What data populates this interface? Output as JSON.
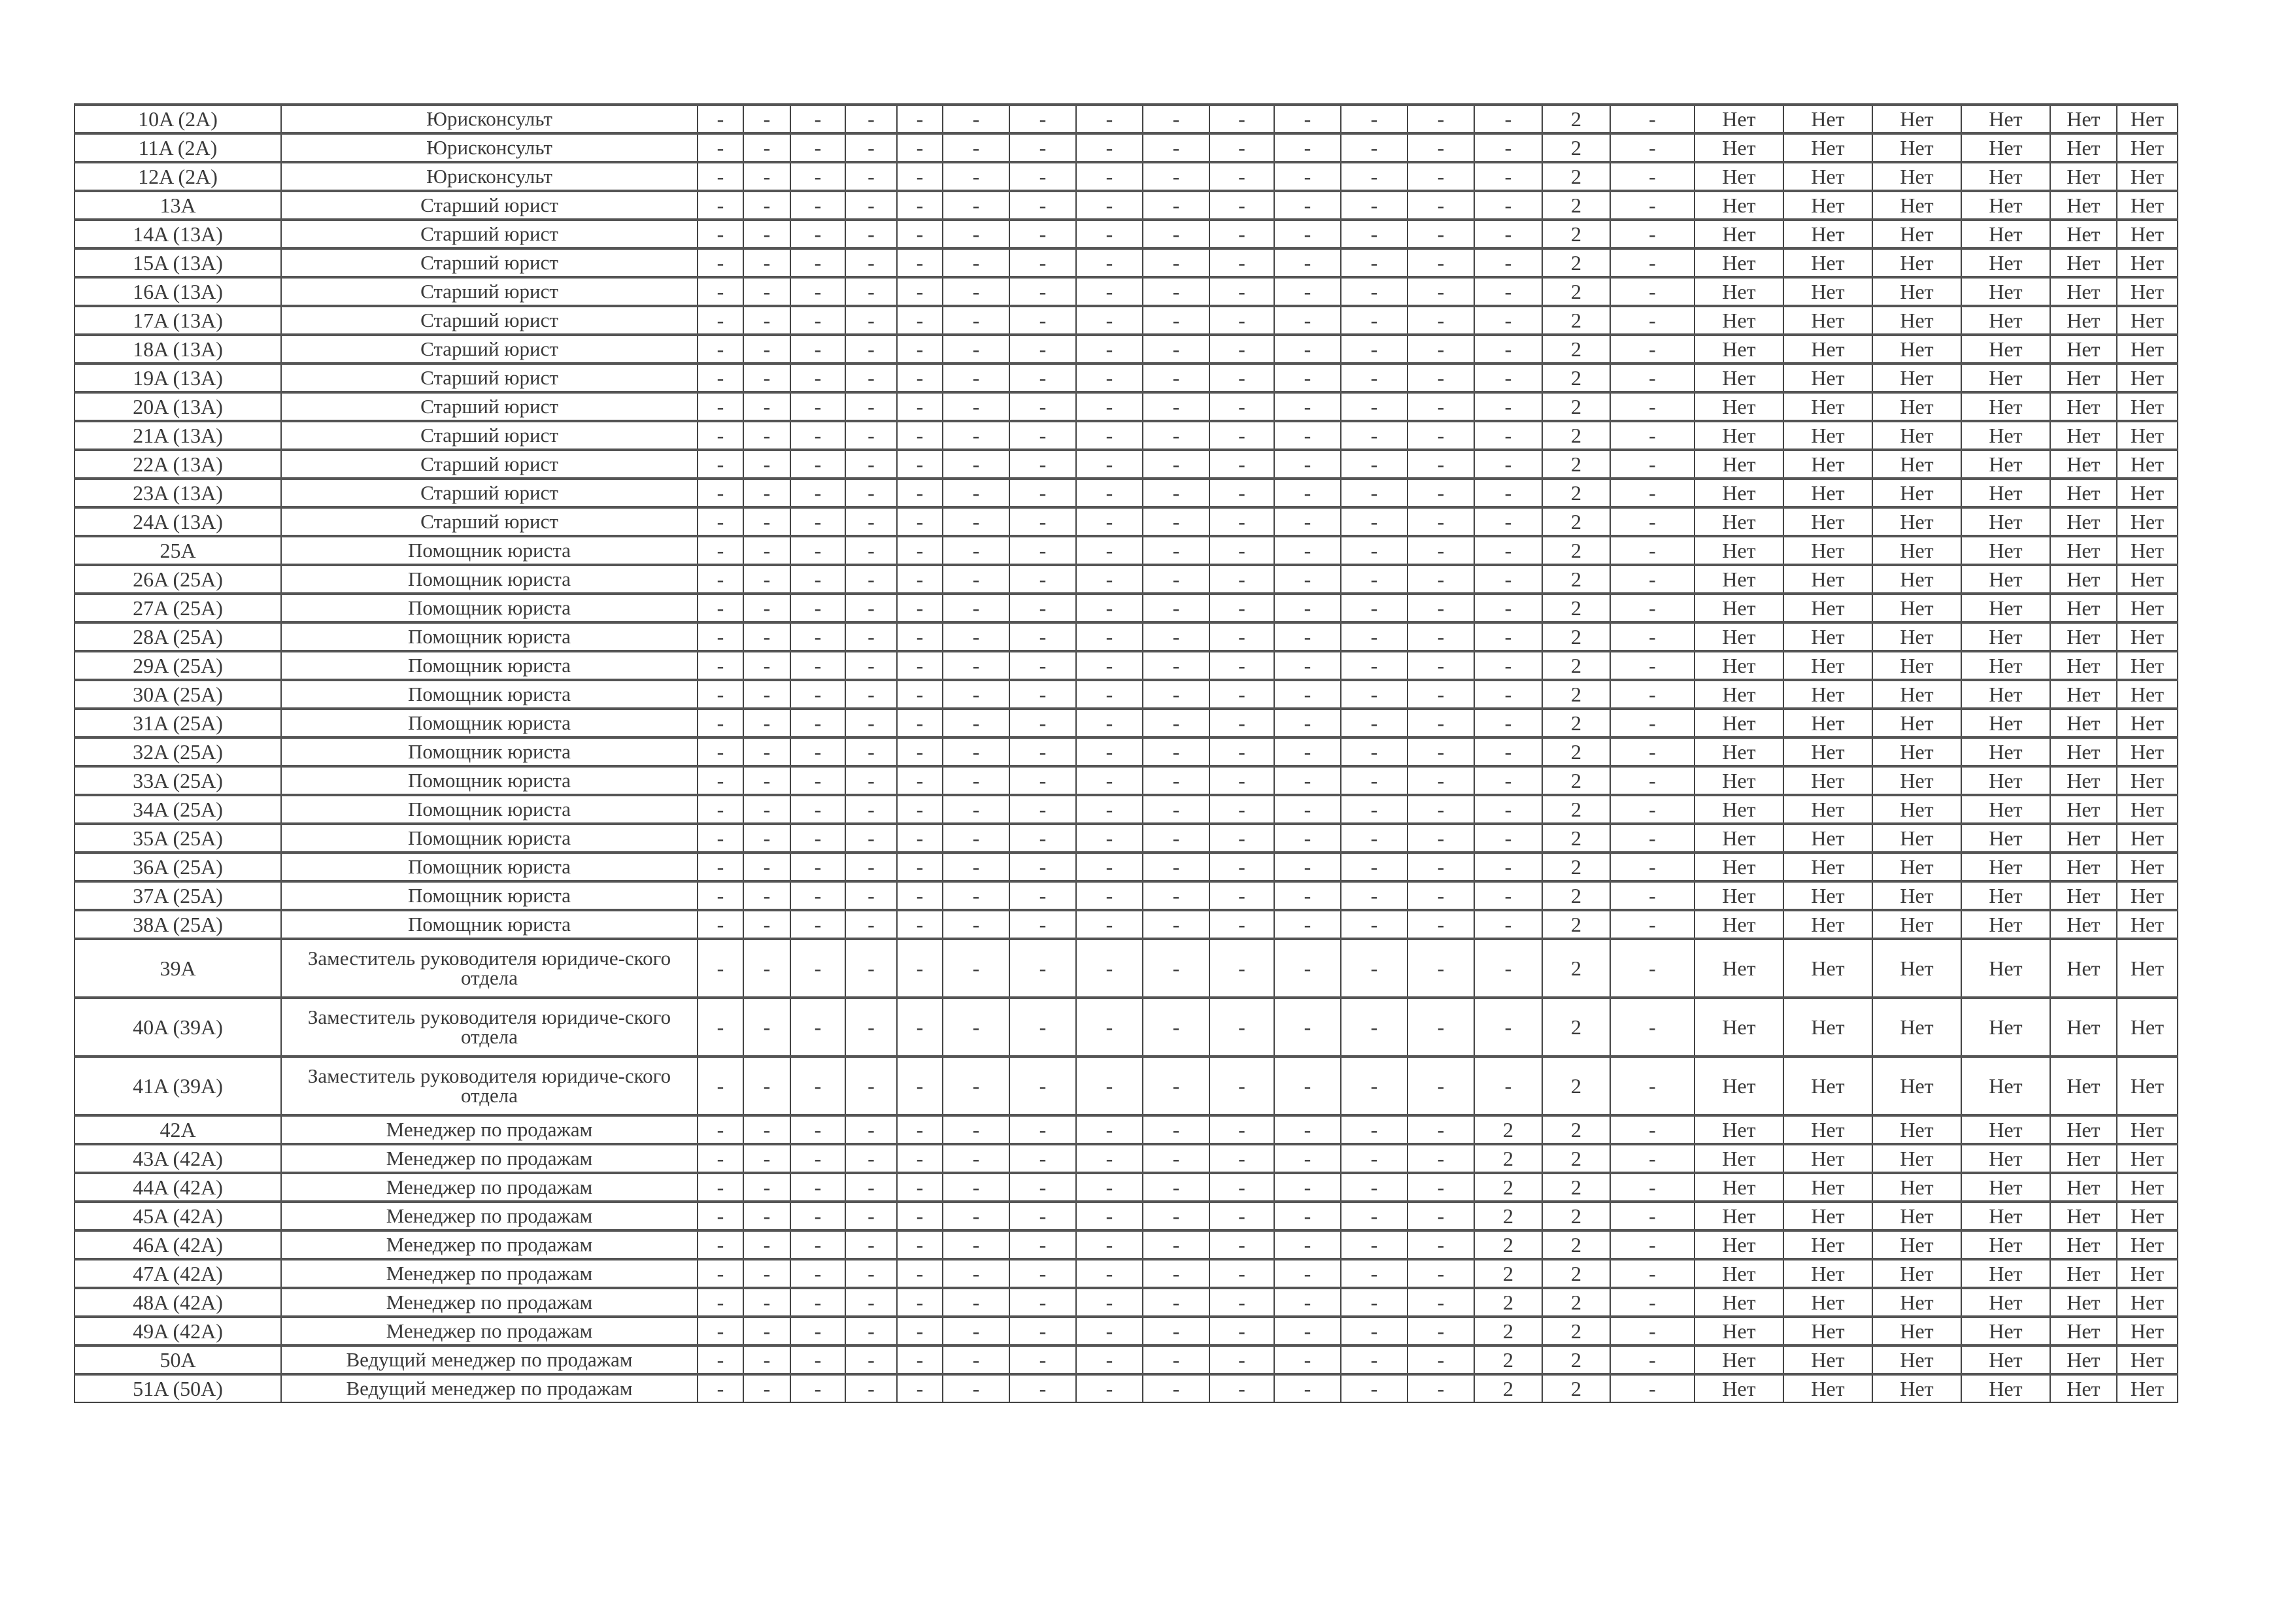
{
  "table": {
    "rows": [
      {
        "id": "10A (2A)",
        "title": "Юрисконсульт",
        "cells": [
          "-",
          "-",
          "-",
          "-",
          "-",
          "-",
          "-",
          "-",
          "-",
          "-",
          "-",
          "-",
          "-",
          "-",
          "2",
          "-",
          "Нет",
          "Нет",
          "Нет",
          "Нет",
          "Нет",
          "Нет"
        ]
      },
      {
        "id": "11A (2A)",
        "title": "Юрисконсульт",
        "cells": [
          "-",
          "-",
          "-",
          "-",
          "-",
          "-",
          "-",
          "-",
          "-",
          "-",
          "-",
          "-",
          "-",
          "-",
          "2",
          "-",
          "Нет",
          "Нет",
          "Нет",
          "Нет",
          "Нет",
          "Нет"
        ]
      },
      {
        "id": "12A (2A)",
        "title": "Юрисконсульт",
        "cells": [
          "-",
          "-",
          "-",
          "-",
          "-",
          "-",
          "-",
          "-",
          "-",
          "-",
          "-",
          "-",
          "-",
          "-",
          "2",
          "-",
          "Нет",
          "Нет",
          "Нет",
          "Нет",
          "Нет",
          "Нет"
        ]
      },
      {
        "id": "13A",
        "title": "Старший юрист",
        "cells": [
          "-",
          "-",
          "-",
          "-",
          "-",
          "-",
          "-",
          "-",
          "-",
          "-",
          "-",
          "-",
          "-",
          "-",
          "2",
          "-",
          "Нет",
          "Нет",
          "Нет",
          "Нет",
          "Нет",
          "Нет"
        ]
      },
      {
        "id": "14A (13A)",
        "title": "Старший юрист",
        "cells": [
          "-",
          "-",
          "-",
          "-",
          "-",
          "-",
          "-",
          "-",
          "-",
          "-",
          "-",
          "-",
          "-",
          "-",
          "2",
          "-",
          "Нет",
          "Нет",
          "Нет",
          "Нет",
          "Нет",
          "Нет"
        ]
      },
      {
        "id": "15A (13A)",
        "title": "Старший юрист",
        "cells": [
          "-",
          "-",
          "-",
          "-",
          "-",
          "-",
          "-",
          "-",
          "-",
          "-",
          "-",
          "-",
          "-",
          "-",
          "2",
          "-",
          "Нет",
          "Нет",
          "Нет",
          "Нет",
          "Нет",
          "Нет"
        ]
      },
      {
        "id": "16A (13A)",
        "title": "Старший юрист",
        "cells": [
          "-",
          "-",
          "-",
          "-",
          "-",
          "-",
          "-",
          "-",
          "-",
          "-",
          "-",
          "-",
          "-",
          "-",
          "2",
          "-",
          "Нет",
          "Нет",
          "Нет",
          "Нет",
          "Нет",
          "Нет"
        ]
      },
      {
        "id": "17A (13A)",
        "title": "Старший юрист",
        "cells": [
          "-",
          "-",
          "-",
          "-",
          "-",
          "-",
          "-",
          "-",
          "-",
          "-",
          "-",
          "-",
          "-",
          "-",
          "2",
          "-",
          "Нет",
          "Нет",
          "Нет",
          "Нет",
          "Нет",
          "Нет"
        ]
      },
      {
        "id": "18A (13A)",
        "title": "Старший юрист",
        "cells": [
          "-",
          "-",
          "-",
          "-",
          "-",
          "-",
          "-",
          "-",
          "-",
          "-",
          "-",
          "-",
          "-",
          "-",
          "2",
          "-",
          "Нет",
          "Нет",
          "Нет",
          "Нет",
          "Нет",
          "Нет"
        ]
      },
      {
        "id": "19A (13A)",
        "title": "Старший юрист",
        "cells": [
          "-",
          "-",
          "-",
          "-",
          "-",
          "-",
          "-",
          "-",
          "-",
          "-",
          "-",
          "-",
          "-",
          "-",
          "2",
          "-",
          "Нет",
          "Нет",
          "Нет",
          "Нет",
          "Нет",
          "Нет"
        ]
      },
      {
        "id": "20A (13A)",
        "title": "Старший юрист",
        "cells": [
          "-",
          "-",
          "-",
          "-",
          "-",
          "-",
          "-",
          "-",
          "-",
          "-",
          "-",
          "-",
          "-",
          "-",
          "2",
          "-",
          "Нет",
          "Нет",
          "Нет",
          "Нет",
          "Нет",
          "Нет"
        ]
      },
      {
        "id": "21A (13A)",
        "title": "Старший юрист",
        "cells": [
          "-",
          "-",
          "-",
          "-",
          "-",
          "-",
          "-",
          "-",
          "-",
          "-",
          "-",
          "-",
          "-",
          "-",
          "2",
          "-",
          "Нет",
          "Нет",
          "Нет",
          "Нет",
          "Нет",
          "Нет"
        ]
      },
      {
        "id": "22A (13A)",
        "title": "Старший юрист",
        "cells": [
          "-",
          "-",
          "-",
          "-",
          "-",
          "-",
          "-",
          "-",
          "-",
          "-",
          "-",
          "-",
          "-",
          "-",
          "2",
          "-",
          "Нет",
          "Нет",
          "Нет",
          "Нет",
          "Нет",
          "Нет"
        ]
      },
      {
        "id": "23A (13A)",
        "title": "Старший юрист",
        "cells": [
          "-",
          "-",
          "-",
          "-",
          "-",
          "-",
          "-",
          "-",
          "-",
          "-",
          "-",
          "-",
          "-",
          "-",
          "2",
          "-",
          "Нет",
          "Нет",
          "Нет",
          "Нет",
          "Нет",
          "Нет"
        ]
      },
      {
        "id": "24A (13A)",
        "title": "Старший юрист",
        "cells": [
          "-",
          "-",
          "-",
          "-",
          "-",
          "-",
          "-",
          "-",
          "-",
          "-",
          "-",
          "-",
          "-",
          "-",
          "2",
          "-",
          "Нет",
          "Нет",
          "Нет",
          "Нет",
          "Нет",
          "Нет"
        ]
      },
      {
        "id": "25A",
        "title": "Помощник юриста",
        "cells": [
          "-",
          "-",
          "-",
          "-",
          "-",
          "-",
          "-",
          "-",
          "-",
          "-",
          "-",
          "-",
          "-",
          "-",
          "2",
          "-",
          "Нет",
          "Нет",
          "Нет",
          "Нет",
          "Нет",
          "Нет"
        ]
      },
      {
        "id": "26A (25A)",
        "title": "Помощник юриста",
        "cells": [
          "-",
          "-",
          "-",
          "-",
          "-",
          "-",
          "-",
          "-",
          "-",
          "-",
          "-",
          "-",
          "-",
          "-",
          "2",
          "-",
          "Нет",
          "Нет",
          "Нет",
          "Нет",
          "Нет",
          "Нет"
        ]
      },
      {
        "id": "27A (25A)",
        "title": "Помощник юриста",
        "cells": [
          "-",
          "-",
          "-",
          "-",
          "-",
          "-",
          "-",
          "-",
          "-",
          "-",
          "-",
          "-",
          "-",
          "-",
          "2",
          "-",
          "Нет",
          "Нет",
          "Нет",
          "Нет",
          "Нет",
          "Нет"
        ]
      },
      {
        "id": "28A (25A)",
        "title": "Помощник юриста",
        "cells": [
          "-",
          "-",
          "-",
          "-",
          "-",
          "-",
          "-",
          "-",
          "-",
          "-",
          "-",
          "-",
          "-",
          "-",
          "2",
          "-",
          "Нет",
          "Нет",
          "Нет",
          "Нет",
          "Нет",
          "Нет"
        ]
      },
      {
        "id": "29A (25A)",
        "title": "Помощник юриста",
        "cells": [
          "-",
          "-",
          "-",
          "-",
          "-",
          "-",
          "-",
          "-",
          "-",
          "-",
          "-",
          "-",
          "-",
          "-",
          "2",
          "-",
          "Нет",
          "Нет",
          "Нет",
          "Нет",
          "Нет",
          "Нет"
        ]
      },
      {
        "id": "30A (25A)",
        "title": "Помощник юриста",
        "cells": [
          "-",
          "-",
          "-",
          "-",
          "-",
          "-",
          "-",
          "-",
          "-",
          "-",
          "-",
          "-",
          "-",
          "-",
          "2",
          "-",
          "Нет",
          "Нет",
          "Нет",
          "Нет",
          "Нет",
          "Нет"
        ]
      },
      {
        "id": "31A (25A)",
        "title": "Помощник юриста",
        "cells": [
          "-",
          "-",
          "-",
          "-",
          "-",
          "-",
          "-",
          "-",
          "-",
          "-",
          "-",
          "-",
          "-",
          "-",
          "2",
          "-",
          "Нет",
          "Нет",
          "Нет",
          "Нет",
          "Нет",
          "Нет"
        ]
      },
      {
        "id": "32A (25A)",
        "title": "Помощник юриста",
        "cells": [
          "-",
          "-",
          "-",
          "-",
          "-",
          "-",
          "-",
          "-",
          "-",
          "-",
          "-",
          "-",
          "-",
          "-",
          "2",
          "-",
          "Нет",
          "Нет",
          "Нет",
          "Нет",
          "Нет",
          "Нет"
        ]
      },
      {
        "id": "33A (25A)",
        "title": "Помощник юриста",
        "cells": [
          "-",
          "-",
          "-",
          "-",
          "-",
          "-",
          "-",
          "-",
          "-",
          "-",
          "-",
          "-",
          "-",
          "-",
          "2",
          "-",
          "Нет",
          "Нет",
          "Нет",
          "Нет",
          "Нет",
          "Нет"
        ]
      },
      {
        "id": "34A (25A)",
        "title": "Помощник юриста",
        "cells": [
          "-",
          "-",
          "-",
          "-",
          "-",
          "-",
          "-",
          "-",
          "-",
          "-",
          "-",
          "-",
          "-",
          "-",
          "2",
          "-",
          "Нет",
          "Нет",
          "Нет",
          "Нет",
          "Нет",
          "Нет"
        ]
      },
      {
        "id": "35A (25A)",
        "title": "Помощник юриста",
        "cells": [
          "-",
          "-",
          "-",
          "-",
          "-",
          "-",
          "-",
          "-",
          "-",
          "-",
          "-",
          "-",
          "-",
          "-",
          "2",
          "-",
          "Нет",
          "Нет",
          "Нет",
          "Нет",
          "Нет",
          "Нет"
        ]
      },
      {
        "id": "36A (25A)",
        "title": "Помощник юриста",
        "cells": [
          "-",
          "-",
          "-",
          "-",
          "-",
          "-",
          "-",
          "-",
          "-",
          "-",
          "-",
          "-",
          "-",
          "-",
          "2",
          "-",
          "Нет",
          "Нет",
          "Нет",
          "Нет",
          "Нет",
          "Нет"
        ]
      },
      {
        "id": "37A (25A)",
        "title": "Помощник юриста",
        "cells": [
          "-",
          "-",
          "-",
          "-",
          "-",
          "-",
          "-",
          "-",
          "-",
          "-",
          "-",
          "-",
          "-",
          "-",
          "2",
          "-",
          "Нет",
          "Нет",
          "Нет",
          "Нет",
          "Нет",
          "Нет"
        ]
      },
      {
        "id": "38A (25A)",
        "title": "Помощник юриста",
        "cells": [
          "-",
          "-",
          "-",
          "-",
          "-",
          "-",
          "-",
          "-",
          "-",
          "-",
          "-",
          "-",
          "-",
          "-",
          "2",
          "-",
          "Нет",
          "Нет",
          "Нет",
          "Нет",
          "Нет",
          "Нет"
        ]
      },
      {
        "id": "39A",
        "title": "Заместитель руководителя юридиче-ского отдела",
        "cells": [
          "-",
          "-",
          "-",
          "-",
          "-",
          "-",
          "-",
          "-",
          "-",
          "-",
          "-",
          "-",
          "-",
          "-",
          "2",
          "-",
          "Нет",
          "Нет",
          "Нет",
          "Нет",
          "Нет",
          "Нет"
        ]
      },
      {
        "id": "40A (39A)",
        "title": "Заместитель руководителя юридиче-ского отдела",
        "cells": [
          "-",
          "-",
          "-",
          "-",
          "-",
          "-",
          "-",
          "-",
          "-",
          "-",
          "-",
          "-",
          "-",
          "-",
          "2",
          "-",
          "Нет",
          "Нет",
          "Нет",
          "Нет",
          "Нет",
          "Нет"
        ]
      },
      {
        "id": "41A (39A)",
        "title": "Заместитель руководителя юридиче-ского отдела",
        "cells": [
          "-",
          "-",
          "-",
          "-",
          "-",
          "-",
          "-",
          "-",
          "-",
          "-",
          "-",
          "-",
          "-",
          "-",
          "2",
          "-",
          "Нет",
          "Нет",
          "Нет",
          "Нет",
          "Нет",
          "Нет"
        ]
      },
      {
        "id": "42A",
        "title": "Менеджер по продажам",
        "cells": [
          "-",
          "-",
          "-",
          "-",
          "-",
          "-",
          "-",
          "-",
          "-",
          "-",
          "-",
          "-",
          "-",
          "2",
          "2",
          "-",
          "Нет",
          "Нет",
          "Нет",
          "Нет",
          "Нет",
          "Нет"
        ]
      },
      {
        "id": "43A (42A)",
        "title": "Менеджер по продажам",
        "cells": [
          "-",
          "-",
          "-",
          "-",
          "-",
          "-",
          "-",
          "-",
          "-",
          "-",
          "-",
          "-",
          "-",
          "2",
          "2",
          "-",
          "Нет",
          "Нет",
          "Нет",
          "Нет",
          "Нет",
          "Нет"
        ]
      },
      {
        "id": "44A (42A)",
        "title": "Менеджер по продажам",
        "cells": [
          "-",
          "-",
          "-",
          "-",
          "-",
          "-",
          "-",
          "-",
          "-",
          "-",
          "-",
          "-",
          "-",
          "2",
          "2",
          "-",
          "Нет",
          "Нет",
          "Нет",
          "Нет",
          "Нет",
          "Нет"
        ]
      },
      {
        "id": "45A (42A)",
        "title": "Менеджер по продажам",
        "cells": [
          "-",
          "-",
          "-",
          "-",
          "-",
          "-",
          "-",
          "-",
          "-",
          "-",
          "-",
          "-",
          "-",
          "2",
          "2",
          "-",
          "Нет",
          "Нет",
          "Нет",
          "Нет",
          "Нет",
          "Нет"
        ]
      },
      {
        "id": "46A (42A)",
        "title": "Менеджер по продажам",
        "cells": [
          "-",
          "-",
          "-",
          "-",
          "-",
          "-",
          "-",
          "-",
          "-",
          "-",
          "-",
          "-",
          "-",
          "2",
          "2",
          "-",
          "Нет",
          "Нет",
          "Нет",
          "Нет",
          "Нет",
          "Нет"
        ]
      },
      {
        "id": "47A (42A)",
        "title": "Менеджер по продажам",
        "cells": [
          "-",
          "-",
          "-",
          "-",
          "-",
          "-",
          "-",
          "-",
          "-",
          "-",
          "-",
          "-",
          "-",
          "2",
          "2",
          "-",
          "Нет",
          "Нет",
          "Нет",
          "Нет",
          "Нет",
          "Нет"
        ]
      },
      {
        "id": "48A (42A)",
        "title": "Менеджер по продажам",
        "cells": [
          "-",
          "-",
          "-",
          "-",
          "-",
          "-",
          "-",
          "-",
          "-",
          "-",
          "-",
          "-",
          "-",
          "2",
          "2",
          "-",
          "Нет",
          "Нет",
          "Нет",
          "Нет",
          "Нет",
          "Нет"
        ]
      },
      {
        "id": "49A (42A)",
        "title": "Менеджер по продажам",
        "cells": [
          "-",
          "-",
          "-",
          "-",
          "-",
          "-",
          "-",
          "-",
          "-",
          "-",
          "-",
          "-",
          "-",
          "2",
          "2",
          "-",
          "Нет",
          "Нет",
          "Нет",
          "Нет",
          "Нет",
          "Нет"
        ]
      },
      {
        "id": "50A",
        "title": "Ведущий менеджер по продажам",
        "cells": [
          "-",
          "-",
          "-",
          "-",
          "-",
          "-",
          "-",
          "-",
          "-",
          "-",
          "-",
          "-",
          "-",
          "2",
          "2",
          "-",
          "Нет",
          "Нет",
          "Нет",
          "Нет",
          "Нет",
          "Нет"
        ]
      },
      {
        "id": "51A (50A)",
        "title": "Ведущий менеджер по продажам",
        "cells": [
          "-",
          "-",
          "-",
          "-",
          "-",
          "-",
          "-",
          "-",
          "-",
          "-",
          "-",
          "-",
          "-",
          "2",
          "2",
          "-",
          "Нет",
          "Нет",
          "Нет",
          "Нет",
          "Нет",
          "Нет"
        ]
      }
    ]
  }
}
